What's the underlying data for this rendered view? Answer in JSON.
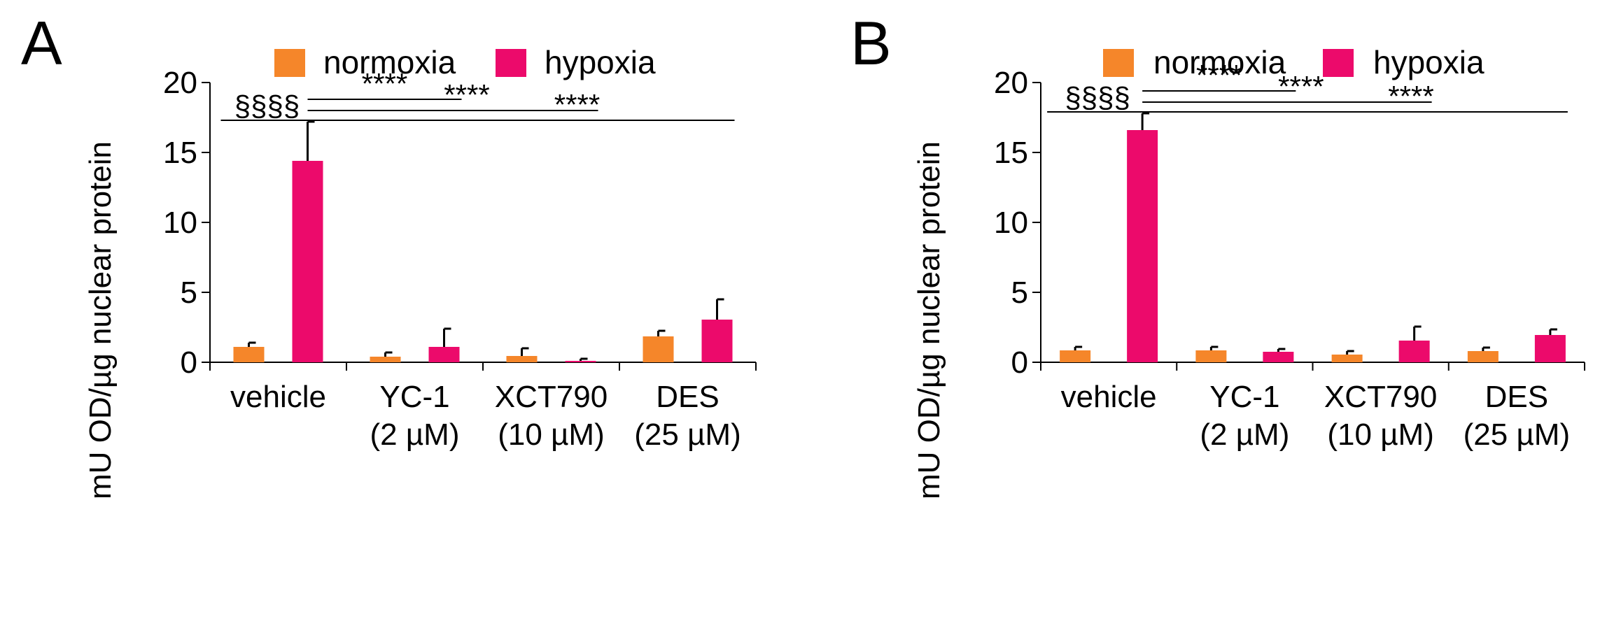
{
  "colors": {
    "normoxia": "#F5862A",
    "hypoxia": "#EC0A6B",
    "axis": "#000000"
  },
  "chart_data": [
    {
      "panel": "A",
      "type": "bar",
      "ylabel": "mU OD/µg nuclear protein",
      "ylim": [
        0,
        20
      ],
      "yticks": [
        0,
        5,
        10,
        15,
        20
      ],
      "categories": [
        [
          "vehicle"
        ],
        [
          "YC-1",
          "(2 µM)"
        ],
        [
          "XCT790",
          "(10 µM)"
        ],
        [
          "DES",
          "(25 µM)"
        ]
      ],
      "legend": [
        "normoxia",
        "hypoxia"
      ],
      "series": [
        {
          "name": "normoxia",
          "values": [
            1.1,
            0.4,
            0.45,
            1.85
          ],
          "errors": [
            0.3,
            0.3,
            0.55,
            0.4
          ]
        },
        {
          "name": "hypoxia",
          "values": [
            14.4,
            1.1,
            0.1,
            3.05
          ],
          "errors": [
            2.8,
            1.3,
            0.15,
            1.45
          ]
        }
      ],
      "annotations": [
        {
          "label": "§§§§",
          "from": [
            0,
            0
          ],
          "to": [
            0,
            1
          ],
          "y": 17.3
        },
        {
          "label": "****",
          "from": [
            0,
            1
          ],
          "to": [
            1,
            1
          ],
          "y": 18.8
        },
        {
          "label": "****",
          "from": [
            0,
            1
          ],
          "to": [
            2,
            1
          ],
          "y": 18.0
        },
        {
          "label": "****",
          "from": [
            0,
            1
          ],
          "to": [
            3,
            1
          ],
          "y": 17.3
        }
      ]
    },
    {
      "panel": "B",
      "type": "bar",
      "ylabel": "mU OD/µg nuclear protein",
      "ylim": [
        0,
        20
      ],
      "yticks": [
        0,
        5,
        10,
        15,
        20
      ],
      "categories": [
        [
          "vehicle"
        ],
        [
          "YC-1",
          "(2 µM)"
        ],
        [
          "XCT790",
          "(10 µM)"
        ],
        [
          "DES",
          "(25 µM)"
        ]
      ],
      "legend": [
        "normoxia",
        "hypoxia"
      ],
      "series": [
        {
          "name": "normoxia",
          "values": [
            0.85,
            0.85,
            0.55,
            0.8
          ],
          "errors": [
            0.25,
            0.25,
            0.25,
            0.25
          ]
        },
        {
          "name": "hypoxia",
          "values": [
            16.6,
            0.75,
            1.55,
            1.95
          ],
          "errors": [
            1.2,
            0.2,
            1.0,
            0.4
          ]
        }
      ],
      "annotations": [
        {
          "label": "§§§§",
          "from": [
            0,
            0
          ],
          "to": [
            0,
            1
          ],
          "y": 17.9
        },
        {
          "label": "****",
          "from": [
            0,
            1
          ],
          "to": [
            1,
            1
          ],
          "y": 19.4
        },
        {
          "label": "****",
          "from": [
            0,
            1
          ],
          "to": [
            2,
            1
          ],
          "y": 18.6
        },
        {
          "label": "****",
          "from": [
            0,
            1
          ],
          "to": [
            3,
            1
          ],
          "y": 17.9
        }
      ]
    }
  ]
}
